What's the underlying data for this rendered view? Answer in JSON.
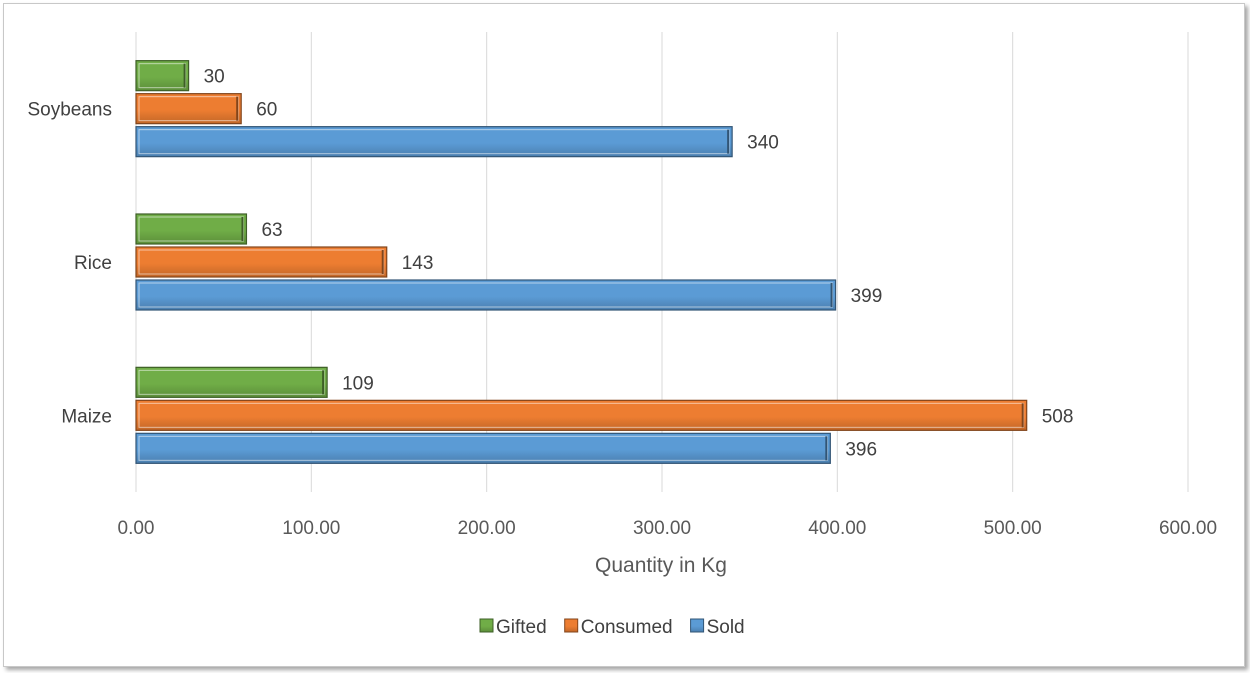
{
  "chart_data": {
    "type": "bar",
    "orientation": "horizontal",
    "categories": [
      "Maize",
      "Rice",
      "Soybeans"
    ],
    "series": [
      {
        "name": "Sold",
        "values": [
          396,
          399,
          340
        ],
        "color": "#5B9BD5"
      },
      {
        "name": "Consumed",
        "values": [
          508,
          143,
          60
        ],
        "color": "#ED7D31"
      },
      {
        "name": "Gifted",
        "values": [
          109,
          63,
          30
        ],
        "color": "#70AD47"
      }
    ],
    "data_labels": true,
    "xlabel": "Quantity in Kg",
    "ylabel": "",
    "xlim": [
      0,
      600
    ],
    "xticks": [
      "0.00",
      "100.00",
      "200.00",
      "300.00",
      "400.00",
      "500.00",
      "600.00"
    ],
    "grid": true,
    "legend_position": "bottom",
    "legend_order": [
      "Gifted",
      "Consumed",
      "Sold"
    ]
  }
}
